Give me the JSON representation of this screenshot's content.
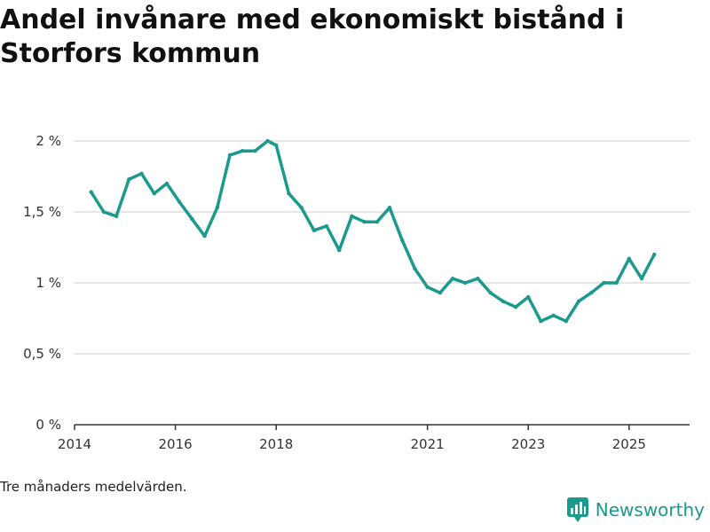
{
  "title": "Andel invånare med ekonomiskt bistånd i Storfors kommun",
  "note": "Tre månaders medelvärden.",
  "brand": "Newsworthy",
  "colors": {
    "line": "#1a9a8c",
    "grid": "#dddddd",
    "axis": "#333333",
    "brand": "#1a9a8c"
  },
  "chart_data": {
    "type": "line",
    "title": "Andel invånare med ekonomiskt bistånd i Storfors kommun",
    "xlabel": "",
    "ylabel": "",
    "ylim": [
      0,
      2
    ],
    "xlim": [
      2014,
      2026.2
    ],
    "y_ticks": [
      {
        "value": 0,
        "label": "0 %"
      },
      {
        "value": 0.5,
        "label": "0,5 %"
      },
      {
        "value": 1,
        "label": "1 %"
      },
      {
        "value": 1.5,
        "label": "1,5 %"
      },
      {
        "value": 2,
        "label": "2 %"
      }
    ],
    "x_ticks": [
      {
        "value": 2014,
        "label": "2014"
      },
      {
        "value": 2016,
        "label": "2016"
      },
      {
        "value": 2018,
        "label": "2018"
      },
      {
        "value": 2021,
        "label": "2021"
      },
      {
        "value": 2023,
        "label": "2023"
      },
      {
        "value": 2025,
        "label": "2025"
      }
    ],
    "series": [
      {
        "name": "Andel invånare med ekonomiskt bistånd",
        "x": [
          2014.33,
          2014.58,
          2014.83,
          2015.08,
          2015.33,
          2015.58,
          2015.83,
          2016.08,
          2016.33,
          2016.58,
          2016.83,
          2017.08,
          2017.33,
          2017.58,
          2017.83,
          2018.0,
          2018.25,
          2018.5,
          2018.75,
          2019.0,
          2019.25,
          2019.5,
          2019.75,
          2020.0,
          2020.25,
          2020.5,
          2020.75,
          2021.0,
          2021.25,
          2021.5,
          2021.75,
          2022.0,
          2022.25,
          2022.5,
          2022.75,
          2023.0,
          2023.25,
          2023.5,
          2023.75,
          2024.0,
          2024.25,
          2024.5,
          2024.75,
          2025.0,
          2025.25,
          2025.5
        ],
        "values": [
          1.64,
          1.5,
          1.47,
          1.73,
          1.77,
          1.63,
          1.7,
          1.57,
          1.45,
          1.33,
          1.53,
          1.9,
          1.93,
          1.93,
          2.0,
          1.97,
          1.63,
          1.53,
          1.37,
          1.4,
          1.23,
          1.47,
          1.43,
          1.43,
          1.53,
          1.3,
          1.1,
          0.97,
          0.93,
          1.03,
          1.0,
          1.03,
          0.93,
          0.87,
          0.83,
          0.9,
          0.73,
          0.77,
          0.73,
          0.87,
          0.93,
          1.0,
          1.0,
          1.17,
          1.03,
          1.2
        ]
      }
    ]
  }
}
